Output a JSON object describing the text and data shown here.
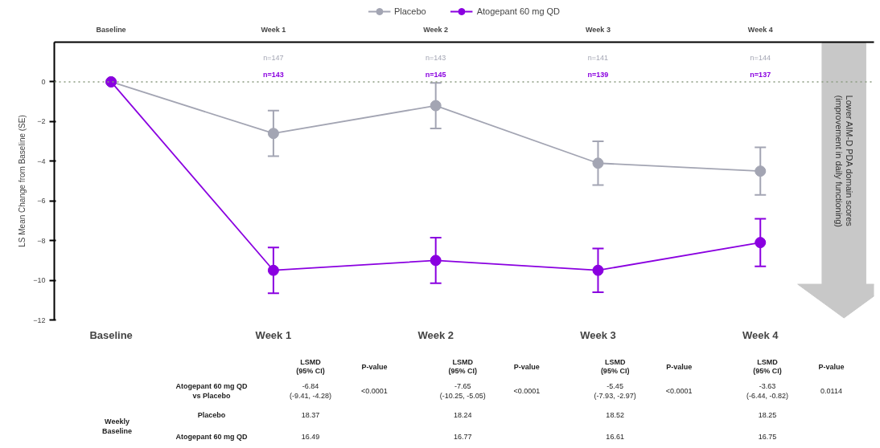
{
  "chart_data": {
    "type": "line",
    "ylabel": "LS Mean Change from Baseline (SE)",
    "categories": [
      "Baseline",
      "Week 1",
      "Week 2",
      "Week 3",
      "Week 4"
    ],
    "ylim": [
      -12,
      2
    ],
    "yticks": [
      0,
      -2,
      -4,
      -6,
      -8,
      -10,
      -12
    ],
    "series": [
      {
        "name": "Placebo",
        "color": "#a3a5b3",
        "values": [
          0,
          -2.6,
          -1.2,
          -4.1,
          -4.5
        ],
        "errors": [
          null,
          1.15,
          1.15,
          1.1,
          1.2
        ]
      },
      {
        "name": "Atogepant 60 mg QD",
        "color": "#8a00e0",
        "values": [
          0,
          -9.5,
          -9.0,
          -9.5,
          -8.1
        ],
        "errors": [
          null,
          1.15,
          1.15,
          1.1,
          1.2
        ]
      }
    ],
    "ref_lines": [
      {
        "axis": "y",
        "value": 0,
        "color": "#8a9a80",
        "line_style": "dotted"
      }
    ],
    "marker": "circle",
    "line_style": "solid",
    "grid": false,
    "legend": "top",
    "annotations": [
      "n=147",
      "n=143",
      "n=141",
      "n=144",
      "n=143",
      "n=145",
      "n=139",
      "n=137",
      "Lower AIM-D PDA domain scores\n(improvement in daily functioning)",
      "LSMD\n(95% CI)",
      "P-value",
      "LSMD\n(95% CI)",
      "P-value",
      "LSMD\n(95% CI)",
      "P-value",
      "LSMD\n(95% CI)",
      "P-value",
      "Atogepant 60 mg QD\nvs Placebo",
      "-6.84\n(-9.41, -4.28)",
      "<0.0001",
      "-7.65\n(-10.25, -5.05)",
      "<0.0001",
      "-5.45\n(-7.93, -2.97)",
      "<0.0001",
      "-3.63\n(-6.44, -0.82)",
      "0.0114",
      "Weekly\nBaseline",
      "Placebo",
      "18.37",
      "18.24",
      "18.52",
      "18.25",
      "Atogepant 60 mg QD",
      "16.49",
      "16.77",
      "16.61",
      "16.75"
    ]
  }
}
